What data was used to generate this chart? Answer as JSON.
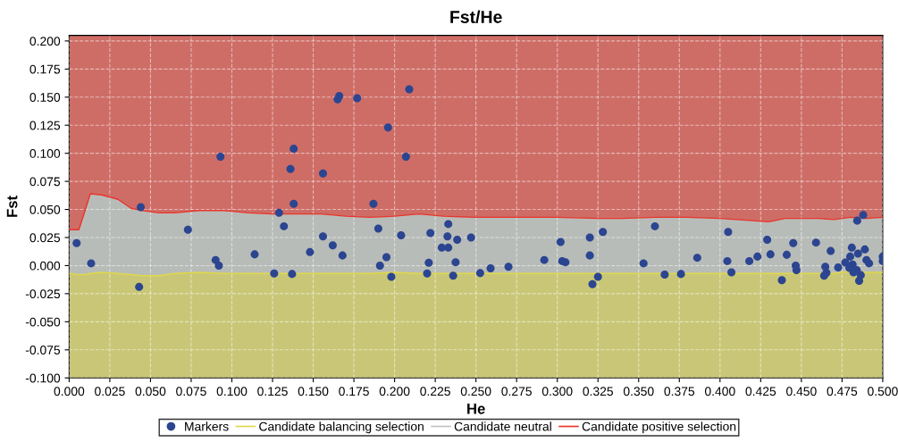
{
  "chart_data": {
    "type": "scatter",
    "title": "Fst/He",
    "xlabel": "He",
    "ylabel": "Fst",
    "xlim": [
      0.0,
      0.5
    ],
    "ylim": [
      -0.1,
      0.205
    ],
    "xticks": [
      {
        "value": 0.0,
        "label": "0.000"
      },
      {
        "value": 0.025,
        "label": "0.025"
      },
      {
        "value": 0.05,
        "label": "0.050"
      },
      {
        "value": 0.075,
        "label": "0.075"
      },
      {
        "value": 0.1,
        "label": "0.100"
      },
      {
        "value": 0.125,
        "label": "0.125"
      },
      {
        "value": 0.15,
        "label": "0.150"
      },
      {
        "value": 0.175,
        "label": "0.175"
      },
      {
        "value": 0.2,
        "label": "0.200"
      },
      {
        "value": 0.225,
        "label": "0.225"
      },
      {
        "value": 0.25,
        "label": "0.250"
      },
      {
        "value": 0.275,
        "label": "0.275"
      },
      {
        "value": 0.3,
        "label": "0.300"
      },
      {
        "value": 0.325,
        "label": "0.325"
      },
      {
        "value": 0.35,
        "label": "0.350"
      },
      {
        "value": 0.375,
        "label": "0.375"
      },
      {
        "value": 0.4,
        "label": "0.400"
      },
      {
        "value": 0.425,
        "label": "0.425"
      },
      {
        "value": 0.45,
        "label": "0.450"
      },
      {
        "value": 0.475,
        "label": "0.475"
      },
      {
        "value": 0.5,
        "label": "0.500"
      }
    ],
    "yticks": [
      {
        "value": -0.1,
        "label": "-0.100"
      },
      {
        "value": -0.075,
        "label": "-0.075"
      },
      {
        "value": -0.05,
        "label": "-0.050"
      },
      {
        "value": -0.025,
        "label": "-0.025"
      },
      {
        "value": 0.0,
        "label": "0.000"
      },
      {
        "value": 0.025,
        "label": "0.025"
      },
      {
        "value": 0.05,
        "label": "0.050"
      },
      {
        "value": 0.075,
        "label": "0.075"
      },
      {
        "value": 0.1,
        "label": "0.100"
      },
      {
        "value": 0.125,
        "label": "0.125"
      },
      {
        "value": 0.15,
        "label": "0.150"
      },
      {
        "value": 0.175,
        "label": "0.175"
      },
      {
        "value": 0.2,
        "label": "0.200"
      }
    ],
    "grid": true,
    "legend": "bottom",
    "series": [
      {
        "name": "Markers",
        "color": "#2c4591",
        "marker": "circle",
        "x": [
          0.0046,
          0.0135,
          0.044,
          0.043,
          0.073,
          0.093,
          0.09,
          0.092,
          0.114,
          0.126,
          0.129,
          0.132,
          0.136,
          0.138,
          0.138,
          0.137,
          0.148,
          0.156,
          0.156,
          0.162,
          0.166,
          0.165,
          0.168,
          0.177,
          0.209,
          0.196,
          0.207,
          0.187,
          0.19,
          0.191,
          0.195,
          0.198,
          0.204,
          0.222,
          0.221,
          0.22,
          0.229,
          0.233,
          0.2325,
          0.233,
          0.2385,
          0.2375,
          0.236,
          0.247,
          0.2526,
          0.259,
          0.27,
          0.292,
          0.302,
          0.303,
          0.305,
          0.32,
          0.32,
          0.3216,
          0.325,
          0.328,
          0.353,
          0.36,
          0.366,
          0.376,
          0.386,
          0.405,
          0.4045,
          0.407,
          0.418,
          0.423,
          0.429,
          0.431,
          0.438,
          0.441,
          0.445,
          0.4465,
          0.447,
          0.459,
          0.4647,
          0.4654,
          0.464,
          0.468,
          0.4726,
          0.477,
          0.48,
          0.481,
          0.4815,
          0.4795,
          0.484,
          0.482,
          0.4865,
          0.4855,
          0.4848,
          0.4843,
          0.488,
          0.489,
          0.49,
          0.4916,
          0.5,
          0.5
        ],
        "values": [
          0.02,
          0.002,
          0.052,
          -0.019,
          0.032,
          0.097,
          0.005,
          0.0,
          0.01,
          -0.007,
          0.047,
          0.035,
          0.086,
          0.104,
          0.055,
          -0.0075,
          0.012,
          0.082,
          0.026,
          0.018,
          0.151,
          0.148,
          0.009,
          0.149,
          0.157,
          0.123,
          0.097,
          0.055,
          0.033,
          0.0,
          0.0075,
          -0.01,
          0.027,
          0.029,
          0.0025,
          -0.007,
          0.016,
          0.016,
          0.026,
          0.037,
          0.023,
          0.003,
          -0.009,
          0.025,
          -0.0067,
          -0.0024,
          -0.001,
          0.005,
          0.021,
          0.004,
          0.003,
          0.025,
          0.009,
          -0.0165,
          -0.01,
          0.03,
          0.002,
          0.035,
          -0.008,
          -0.0075,
          0.007,
          0.03,
          0.004,
          -0.006,
          0.004,
          0.008,
          0.023,
          0.01,
          -0.013,
          0.0096,
          0.02,
          0.0,
          -0.004,
          0.0205,
          -0.001,
          -0.0064,
          -0.009,
          0.013,
          -0.0016,
          0.0027,
          0.008,
          0.016,
          0.001,
          -0.002,
          -0.004,
          -0.006,
          -0.0085,
          -0.0136,
          0.0107,
          0.04,
          0.045,
          0.0144,
          0.005,
          0.002,
          0.008,
          0.004
        ]
      },
      {
        "name": "Candidate balancing selection",
        "type": "line",
        "color": "#e0d84a",
        "x": [
          0.0,
          0.006,
          0.01,
          0.013,
          0.02,
          0.03,
          0.038,
          0.045,
          0.055,
          0.065,
          0.08,
          0.095,
          0.11,
          0.125,
          0.14,
          0.155,
          0.17,
          0.185,
          0.2,
          0.215,
          0.23,
          0.25,
          0.27,
          0.3,
          0.325,
          0.34,
          0.36,
          0.38,
          0.4,
          0.42,
          0.43,
          0.44,
          0.46,
          0.47,
          0.48,
          0.49,
          0.5
        ],
        "values": [
          -0.007,
          -0.008,
          -0.008,
          -0.007,
          -0.006,
          -0.007,
          -0.008,
          -0.009,
          -0.009,
          -0.007,
          -0.006,
          -0.007,
          -0.007,
          -0.007,
          -0.007,
          -0.007,
          -0.007,
          -0.007,
          -0.006,
          -0.007,
          -0.007,
          -0.007,
          -0.007,
          -0.007,
          -0.007,
          -0.007,
          -0.007,
          -0.007,
          -0.007,
          -0.007,
          -0.007,
          -0.007,
          -0.007,
          -0.007,
          -0.005,
          -0.006,
          -0.006
        ]
      },
      {
        "name": "Candidate neutral",
        "type": "line",
        "color": "#c0c4c0"
      },
      {
        "name": "Candidate positive selection",
        "type": "line",
        "color": "#e8352c",
        "x": [
          0.0,
          0.006,
          0.01,
          0.013,
          0.02,
          0.03,
          0.038,
          0.045,
          0.055,
          0.065,
          0.08,
          0.095,
          0.11,
          0.125,
          0.14,
          0.155,
          0.17,
          0.185,
          0.2,
          0.215,
          0.23,
          0.25,
          0.27,
          0.3,
          0.325,
          0.34,
          0.36,
          0.38,
          0.4,
          0.42,
          0.43,
          0.44,
          0.46,
          0.47,
          0.48,
          0.49,
          0.5
        ],
        "values": [
          0.032,
          0.032,
          0.05,
          0.064,
          0.063,
          0.059,
          0.051,
          0.049,
          0.047,
          0.047,
          0.049,
          0.049,
          0.047,
          0.046,
          0.046,
          0.046,
          0.044,
          0.043,
          0.044,
          0.046,
          0.044,
          0.043,
          0.043,
          0.043,
          0.042,
          0.042,
          0.043,
          0.043,
          0.042,
          0.04,
          0.039,
          0.042,
          0.042,
          0.041,
          0.043,
          0.042,
          0.043
        ]
      }
    ]
  }
}
